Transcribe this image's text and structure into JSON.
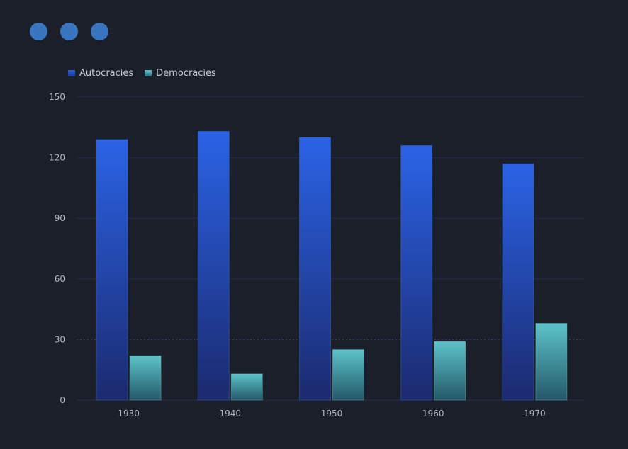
{
  "window_dots": [
    {
      "name": "dot-1",
      "color": "#3a75bf"
    },
    {
      "name": "dot-2",
      "color": "#3a75bf"
    },
    {
      "name": "dot-3",
      "color": "#3a75bf"
    }
  ],
  "legend": {
    "items": [
      {
        "label": "Autocracies",
        "color": "#2a5fdc"
      },
      {
        "label": "Democracies",
        "color": "#5bbfc6"
      }
    ]
  },
  "chart_data": {
    "type": "bar",
    "categories": [
      "1930",
      "1940",
      "1950",
      "1960",
      "1970"
    ],
    "series": [
      {
        "name": "Autocracies",
        "values": [
          129,
          133,
          130,
          126,
          117
        ],
        "color": "#2a5fdc"
      },
      {
        "name": "Democracies",
        "values": [
          22,
          13,
          25,
          29,
          38
        ],
        "color": "#5bbfc6"
      }
    ],
    "ylim": [
      0,
      150
    ],
    "yticks": [
      0,
      30,
      60,
      90,
      120,
      150
    ],
    "grid": true,
    "legend_position": "top-left"
  }
}
